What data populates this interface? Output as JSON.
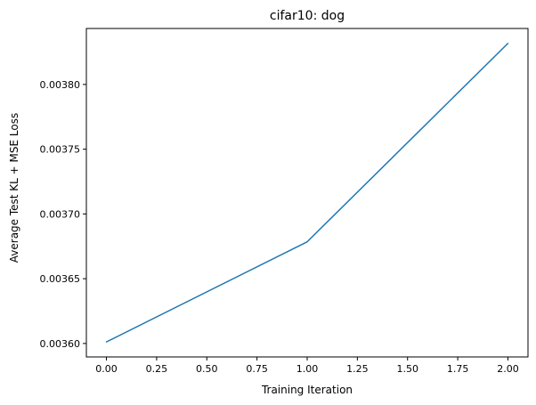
{
  "chart_data": {
    "type": "line",
    "title": "cifar10: dog",
    "xlabel": "Training Iteration",
    "ylabel": "Average Test KL + MSE Loss",
    "x": [
      0,
      1,
      2
    ],
    "series": [
      {
        "values": [
          0.0036012,
          0.0036785,
          0.0038317
        ],
        "color": "#1f77b4"
      }
    ],
    "xlim": [
      -0.1,
      2.1
    ],
    "ylim": [
      0.0035896,
      0.0038432
    ],
    "xticks": [
      0.0,
      0.25,
      0.5,
      0.75,
      1.0,
      1.25,
      1.5,
      1.75,
      2.0
    ],
    "xtick_labels": [
      "0.00",
      "0.25",
      "0.50",
      "0.75",
      "1.00",
      "1.25",
      "1.50",
      "1.75",
      "2.00"
    ],
    "yticks": [
      0.0036,
      0.00365,
      0.0037,
      0.00375,
      0.0038
    ],
    "ytick_labels": [
      "0.00360",
      "0.00365",
      "0.00370",
      "0.00375",
      "0.00380"
    ],
    "grid": false,
    "legend": "none"
  }
}
